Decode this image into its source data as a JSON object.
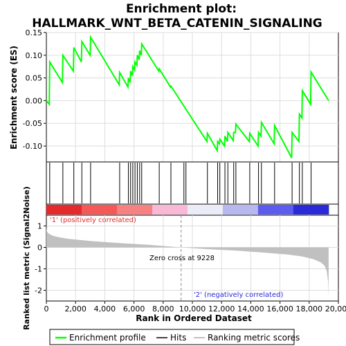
{
  "chart_data": {
    "type": "line",
    "title_line1": "Enrichment plot:",
    "title_line2": "HALLMARK_WNT_BETA_CATENIN_SIGNALING",
    "top_panel": {
      "ylabel": "Enrichment score (ES)",
      "ylim": [
        -0.135,
        0.15
      ],
      "yticks": [
        "0.15",
        "0.10",
        "0.05",
        "0.00",
        "-0.05",
        "-0.10"
      ],
      "ytick_values": [
        0.15,
        0.1,
        0.05,
        0.0,
        -0.05,
        -0.1
      ],
      "series": [
        {
          "name": "Enrichment profile",
          "color": "#00ff00",
          "x": [
            0,
            200,
            230,
            1100,
            1130,
            1850,
            1880,
            2400,
            2430,
            3000,
            3030,
            4990,
            5020,
            5590,
            5620,
            5740,
            5770,
            5890,
            5920,
            6040,
            6070,
            6200,
            6230,
            6360,
            6390,
            6500,
            6530,
            7700,
            7730,
            8500,
            8530,
            11000,
            11030,
            11700,
            11730,
            11850,
            11880,
            12200,
            12230,
            12400,
            12430,
            12800,
            12830,
            12950,
            12980,
            13900,
            13930,
            14500,
            14530,
            14700,
            14730,
            15600,
            15630,
            16800,
            16830,
            17300,
            17330,
            17500,
            17530,
            18100,
            18130,
            19330
          ],
          "y": [
            0.0,
            -0.008,
            0.085,
            0.04,
            0.1,
            0.065,
            0.117,
            0.085,
            0.13,
            0.1,
            0.14,
            0.035,
            0.062,
            0.03,
            0.05,
            0.04,
            0.065,
            0.055,
            0.075,
            0.068,
            0.085,
            0.078,
            0.1,
            0.09,
            0.11,
            0.1,
            0.125,
            0.065,
            0.07,
            0.03,
            0.032,
            -0.09,
            -0.072,
            -0.11,
            -0.09,
            -0.095,
            -0.085,
            -0.1,
            -0.078,
            -0.09,
            -0.07,
            -0.088,
            -0.07,
            -0.07,
            -0.052,
            -0.09,
            -0.072,
            -0.1,
            -0.07,
            -0.078,
            -0.048,
            -0.095,
            -0.055,
            -0.126,
            -0.07,
            -0.09,
            -0.03,
            -0.038,
            0.022,
            -0.008,
            0.063,
            0.0
          ]
        }
      ]
    },
    "hits": [
      230,
      1130,
      1880,
      2430,
      3030,
      5020,
      5620,
      5770,
      5920,
      6070,
      6230,
      6390,
      6530,
      7730,
      8530,
      9420,
      9560,
      11030,
      11730,
      11880,
      12230,
      12430,
      12830,
      12980,
      13930,
      14530,
      14730,
      15630,
      16830,
      17330,
      17530,
      18130
    ],
    "heatmap_colors": [
      "#e42a2a",
      "#f55858",
      "#f78080",
      "#f9b8d6",
      "#ececf8",
      "#b8b8f0",
      "#5c5cee",
      "#2a2ad8"
    ],
    "bottom_panel": {
      "ylabel_line1": "Ranked list metric (Signal2Noise)",
      "ylim": [
        -2.5,
        1.5
      ],
      "yticks": [
        "1",
        "0",
        "-1",
        "-2"
      ],
      "ytick_values": [
        1,
        0,
        -1,
        -2
      ],
      "zero_cross_label": "Zero cross at 9228",
      "zero_cross": 9228,
      "pos_label": "'1' (positively correlated)",
      "neg_label": "'2' (negatively correlated)",
      "curve_x": [
        0,
        30,
        150,
        400,
        800,
        1500,
        3000,
        5000,
        7000,
        9228,
        11000,
        13000,
        15000,
        16500,
        17500,
        18300,
        18800,
        19050,
        19200,
        19300,
        19330
      ],
      "curve_y": [
        0.95,
        0.75,
        0.65,
        0.55,
        0.48,
        0.4,
        0.3,
        0.2,
        0.12,
        0.0,
        -0.08,
        -0.15,
        -0.25,
        -0.33,
        -0.42,
        -0.55,
        -0.7,
        -0.85,
        -1.1,
        -1.6,
        -2.35
      ]
    },
    "xlabel": "Rank in Ordered Dataset",
    "xlim": [
      0,
      20000
    ],
    "xticks": [
      "0",
      "2,000",
      "4,000",
      "6,000",
      "8,000",
      "10,000",
      "12,000",
      "14,000",
      "16,000",
      "18,000",
      "20,000"
    ],
    "xtick_values": [
      0,
      2000,
      4000,
      6000,
      8000,
      10000,
      12000,
      14000,
      16000,
      18000,
      20000
    ],
    "legend": {
      "items": [
        {
          "label": "Enrichment profile",
          "color": "#00ff00"
        },
        {
          "label": "Hits",
          "color": "#000000"
        },
        {
          "label": "Ranking metric scores",
          "color": "#c0c0c0"
        }
      ]
    }
  }
}
